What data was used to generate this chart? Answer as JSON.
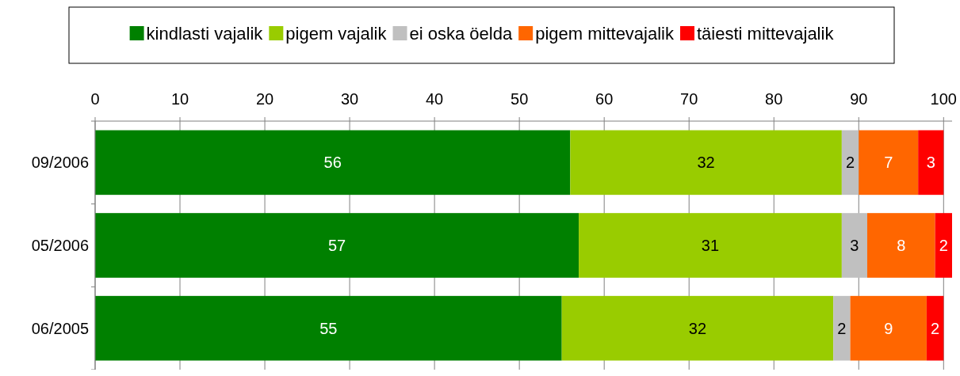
{
  "chart_data": {
    "type": "bar",
    "orientation": "horizontal",
    "stacked": true,
    "categories": [
      "09/2006",
      "05/2006",
      "06/2005"
    ],
    "series": [
      {
        "name": "kindlasti vajalik",
        "color": "#008000",
        "values": [
          56,
          57,
          55
        ]
      },
      {
        "name": "pigem vajalik",
        "color": "#99cc00",
        "values": [
          32,
          31,
          32
        ]
      },
      {
        "name": "ei oska öelda",
        "color": "#c0c0c0",
        "values": [
          2,
          3,
          2
        ]
      },
      {
        "name": "pigem mittevajalik",
        "color": "#ff6600",
        "values": [
          7,
          8,
          9
        ]
      },
      {
        "name": "täiesti mittevajalik",
        "color": "#ff0000",
        "values": [
          3,
          2,
          2
        ]
      }
    ],
    "xlim": [
      0,
      101
    ],
    "xticks": [
      0,
      10,
      20,
      30,
      40,
      50,
      60,
      70,
      80,
      90,
      100
    ],
    "grid": "x",
    "legend": "top",
    "data_labels": true
  }
}
